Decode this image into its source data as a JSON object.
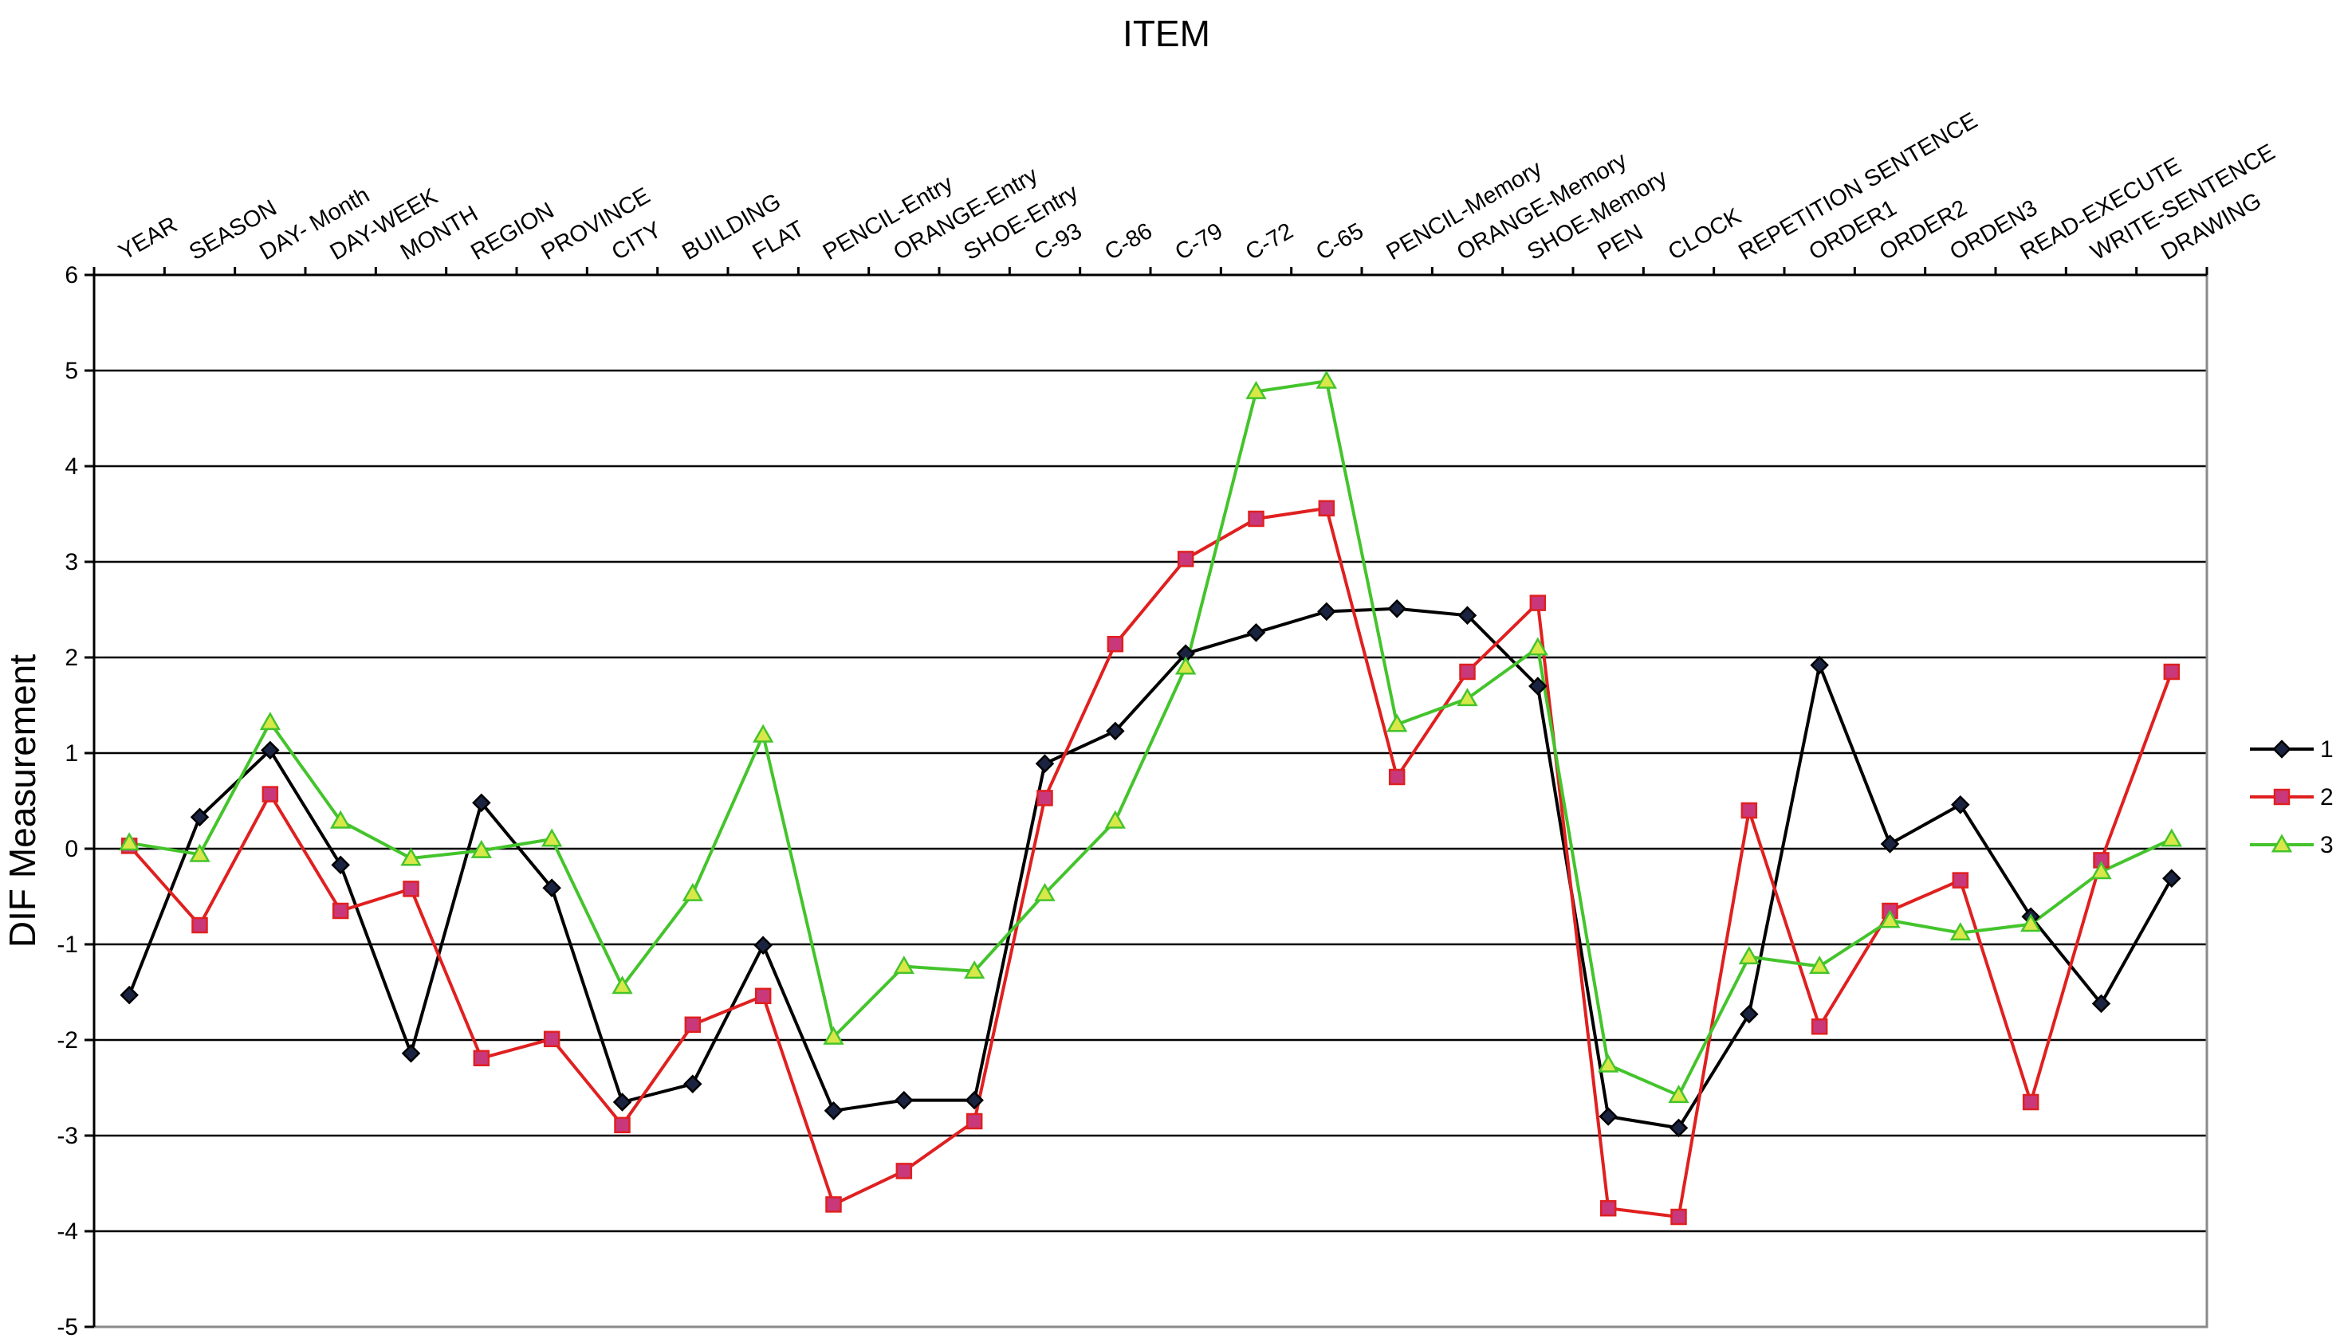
{
  "chart_data": {
    "type": "line",
    "title": "ITEM",
    "xlabel": "ITEM",
    "ylabel": "DIF Measurement",
    "ylim": [
      -5,
      6
    ],
    "yticks": [
      -5,
      -4,
      -3,
      -2,
      -1,
      0,
      1,
      2,
      3,
      4,
      5,
      6
    ],
    "ytick_labels": [
      "-5",
      "-4",
      "-3",
      "-2",
      "-1",
      "0",
      "1",
      "2",
      "3",
      "4",
      "5",
      "6"
    ],
    "grid": "horizontal",
    "legend_position": "right",
    "categories": [
      "YEAR",
      "SEASON",
      "DAY- Month",
      "DAY-WEEK",
      "MONTH",
      "REGION",
      "PROVINCE",
      "CITY",
      "BUILDING",
      "FLAT",
      "PENCIL-Entry",
      "ORANGE-Entry",
      "SHOE-Entry",
      "C-93",
      "C-86",
      "C-79",
      "C-72",
      "C-65",
      "PENCIL-Memory",
      "ORANGE-Memory",
      "SHOE-Memory",
      "PEN",
      "CLOCK",
      "REPETITION  SENTENCE",
      "ORDER1",
      "ORDER2",
      "ORDEN3",
      "READ-EXECUTE",
      "WRITE-SENTENCE",
      "DRAWING"
    ],
    "series": [
      {
        "name": "1",
        "color": "#000000",
        "marker": "diamond",
        "marker_fill": "#1a2340",
        "values": [
          -1.53,
          0.33,
          1.03,
          -0.17,
          -2.14,
          0.48,
          -0.41,
          -2.65,
          -2.46,
          -1.01,
          -2.74,
          -2.63,
          -2.63,
          0.89,
          1.23,
          2.04,
          2.26,
          2.48,
          2.51,
          2.44,
          1.7,
          -2.8,
          -2.92,
          -1.73,
          1.92,
          0.05,
          0.46,
          -0.71,
          -1.62,
          -0.31
        ]
      },
      {
        "name": "2",
        "color": "#e02020",
        "marker": "square",
        "marker_fill": "#c8387a",
        "values": [
          0.03,
          -0.8,
          0.57,
          -0.65,
          -0.42,
          -2.19,
          -1.99,
          -2.89,
          -1.84,
          -1.54,
          -3.72,
          -3.37,
          -2.85,
          0.53,
          2.14,
          3.03,
          3.45,
          3.56,
          0.75,
          1.85,
          2.57,
          -3.76,
          -3.85,
          0.4,
          -1.86,
          -0.65,
          -0.33,
          -2.65,
          -0.12,
          1.85
        ]
      },
      {
        "name": "3",
        "color": "#44c42c",
        "marker": "triangle",
        "marker_fill": "#d8e848",
        "values": [
          0.06,
          -0.06,
          1.32,
          0.29,
          -0.1,
          -0.02,
          0.1,
          -1.44,
          -0.47,
          1.19,
          -1.97,
          -1.23,
          -1.28,
          -0.47,
          0.29,
          1.9,
          4.78,
          4.89,
          1.3,
          1.57,
          2.1,
          -2.26,
          -2.58,
          -1.13,
          -1.23,
          -0.75,
          -0.88,
          -0.79,
          -0.24,
          0.1
        ]
      }
    ]
  }
}
